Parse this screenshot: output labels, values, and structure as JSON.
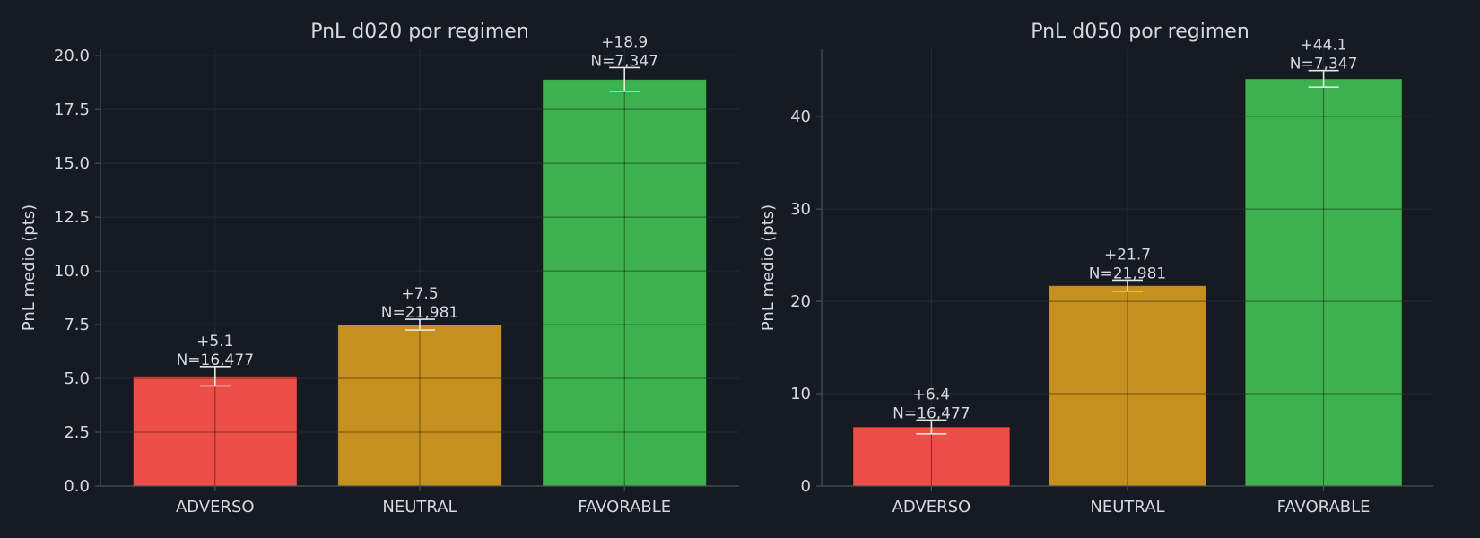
{
  "colors": {
    "background": "#161a22",
    "ADVERSO": "#f7524a",
    "NEUTRAL": "#d09721",
    "FAVORABLE": "#3fb950",
    "error_bar": "#e6e6e6"
  },
  "chart_data": [
    {
      "type": "bar",
      "title": "PnL d020 por regimen",
      "xlabel": "",
      "ylabel": "PnL medio (pts)",
      "categories": [
        "ADVERSO",
        "NEUTRAL",
        "FAVORABLE"
      ],
      "values": [
        5.1,
        7.5,
        18.9
      ],
      "error": [
        0.45,
        0.25,
        0.55
      ],
      "value_labels": [
        "+5.1",
        "+7.5",
        "+18.9"
      ],
      "n_labels": [
        "N=16,477",
        "N=21,981",
        "N=7,347"
      ],
      "ylim": [
        0,
        20.3
      ],
      "yticks": [
        0,
        2.5,
        5,
        7.5,
        10,
        12.5,
        15,
        17.5,
        20
      ],
      "ytick_labels": [
        "0.0",
        "2.5",
        "5.0",
        "7.5",
        "10.0",
        "12.5",
        "15.0",
        "17.5",
        "20.0"
      ],
      "grid": true,
      "legend": "none"
    },
    {
      "type": "bar",
      "title": "PnL d050 por regimen",
      "xlabel": "",
      "ylabel": "PnL medio (pts)",
      "categories": [
        "ADVERSO",
        "NEUTRAL",
        "FAVORABLE"
      ],
      "values": [
        6.4,
        21.7,
        44.1
      ],
      "error": [
        0.75,
        0.6,
        0.9
      ],
      "value_labels": [
        "+6.4",
        "+21.7",
        "+44.1"
      ],
      "n_labels": [
        "N=16,477",
        "N=21,981",
        "N=7,347"
      ],
      "ylim": [
        0,
        47.3
      ],
      "yticks": [
        0,
        10,
        20,
        30,
        40
      ],
      "ytick_labels": [
        "0",
        "10",
        "20",
        "30",
        "40"
      ],
      "grid": true,
      "legend": "none"
    }
  ]
}
